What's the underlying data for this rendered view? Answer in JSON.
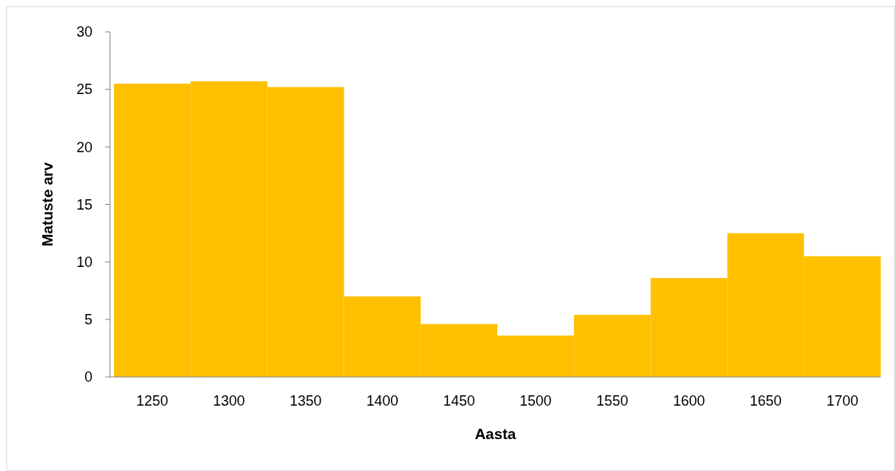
{
  "chart_data": {
    "type": "bar",
    "xlabel": "Aasta",
    "ylabel": "Matuste arv",
    "categories": [
      "1250",
      "1300",
      "1350",
      "1400",
      "1450",
      "1500",
      "1550",
      "1600",
      "1650",
      "1700"
    ],
    "values": [
      25.5,
      25.7,
      25.2,
      7.0,
      4.6,
      3.6,
      5.4,
      8.6,
      12.5,
      10.5
    ],
    "color": "#ffc000",
    "ylim": [
      0,
      30
    ],
    "yticks": [
      0,
      5,
      10,
      15,
      20,
      25,
      30
    ],
    "grid": false
  }
}
